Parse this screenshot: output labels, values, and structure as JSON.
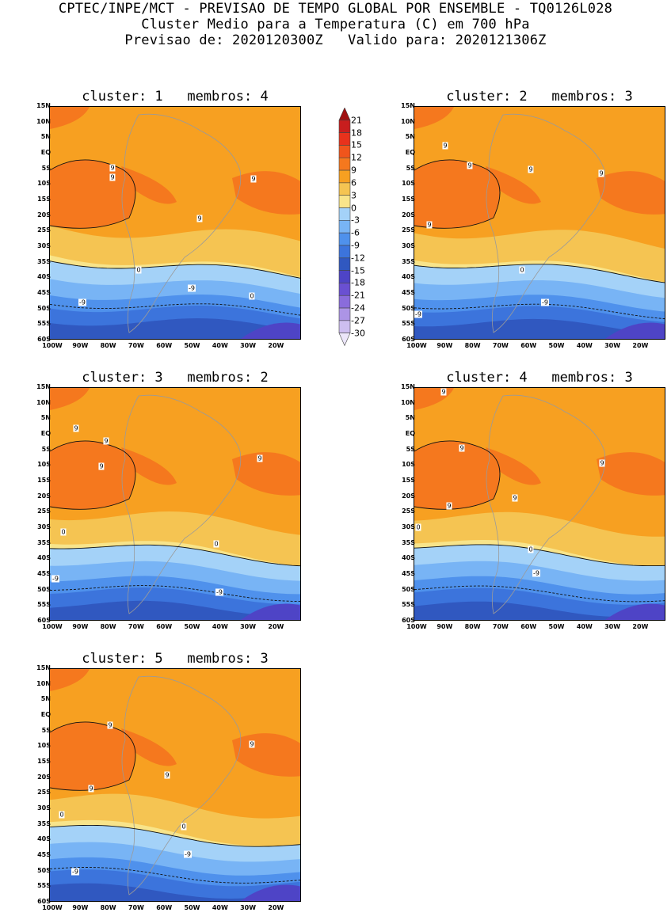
{
  "header": {
    "line1": "CPTEC/INPE/MCT - PREVISAO DE TEMPO GLOBAL POR ENSEMBLE - TQ0126L028",
    "line2": "Cluster Medio para a Temperatura (C) em 700 hPa",
    "line3": "Previsao de: 2020120300Z   Valido para: 2020121306Z"
  },
  "lat_ticks": [
    "15N",
    "10N",
    "5N",
    "EQ",
    "5S",
    "10S",
    "15S",
    "20S",
    "25S",
    "30S",
    "35S",
    "40S",
    "45S",
    "50S",
    "55S",
    "60S"
  ],
  "lon_ticks": [
    "100W",
    "90W",
    "80W",
    "70W",
    "60W",
    "50W",
    "40W",
    "30W",
    "20W"
  ],
  "colorbar": {
    "levels": [
      "21",
      "18",
      "15",
      "12",
      "9",
      "6",
      "3",
      "0",
      "-3",
      "-6",
      "-9",
      "-12",
      "-15",
      "-18",
      "-21",
      "-24",
      "-27",
      "-30"
    ],
    "colors": [
      "#a01010",
      "#c81e1e",
      "#e8321c",
      "#f0551c",
      "#f5781e",
      "#f7a021",
      "#f5c452",
      "#f8e48a",
      "#a4d2f8",
      "#78b4f5",
      "#4f91ec",
      "#3c74dc",
      "#3058c0",
      "#4e44c6",
      "#6a50d2",
      "#8a6cdc",
      "#ac94e6",
      "#cdbef0",
      "#ece6fa"
    ]
  },
  "panels": [
    {
      "title": "cluster: 1   membros: 4",
      "labels": [
        {
          "t": "9"
        },
        {
          "t": "9"
        },
        {
          "t": "9"
        },
        {
          "t": "9"
        },
        {
          "t": "0"
        },
        {
          "t": "0"
        },
        {
          "t": "-9"
        },
        {
          "t": "-9"
        }
      ]
    },
    {
      "title": "cluster: 2   membros: 3",
      "labels": [
        {
          "t": "9"
        },
        {
          "t": "9"
        },
        {
          "t": "9"
        },
        {
          "t": "9"
        },
        {
          "t": "9"
        },
        {
          "t": "0"
        },
        {
          "t": "-9"
        },
        {
          "t": "-9"
        }
      ]
    },
    {
      "title": "cluster: 3   membros: 2",
      "labels": [
        {
          "t": "9"
        },
        {
          "t": "9"
        },
        {
          "t": "9"
        },
        {
          "t": "9"
        },
        {
          "t": "0"
        },
        {
          "t": "0"
        },
        {
          "t": "-9"
        },
        {
          "t": "-9"
        }
      ]
    },
    {
      "title": "cluster: 4   membros: 3",
      "labels": [
        {
          "t": "9"
        },
        {
          "t": "9"
        },
        {
          "t": "9"
        },
        {
          "t": "9"
        },
        {
          "t": "9"
        },
        {
          "t": "0"
        },
        {
          "t": "0"
        },
        {
          "t": "-9"
        }
      ]
    },
    {
      "title": "cluster: 5   membros: 3",
      "labels": [
        {
          "t": "9"
        },
        {
          "t": "9"
        },
        {
          "t": "9"
        },
        {
          "t": "9"
        },
        {
          "t": "0"
        },
        {
          "t": "0"
        },
        {
          "t": "-9"
        },
        {
          "t": "-9"
        }
      ]
    }
  ]
}
